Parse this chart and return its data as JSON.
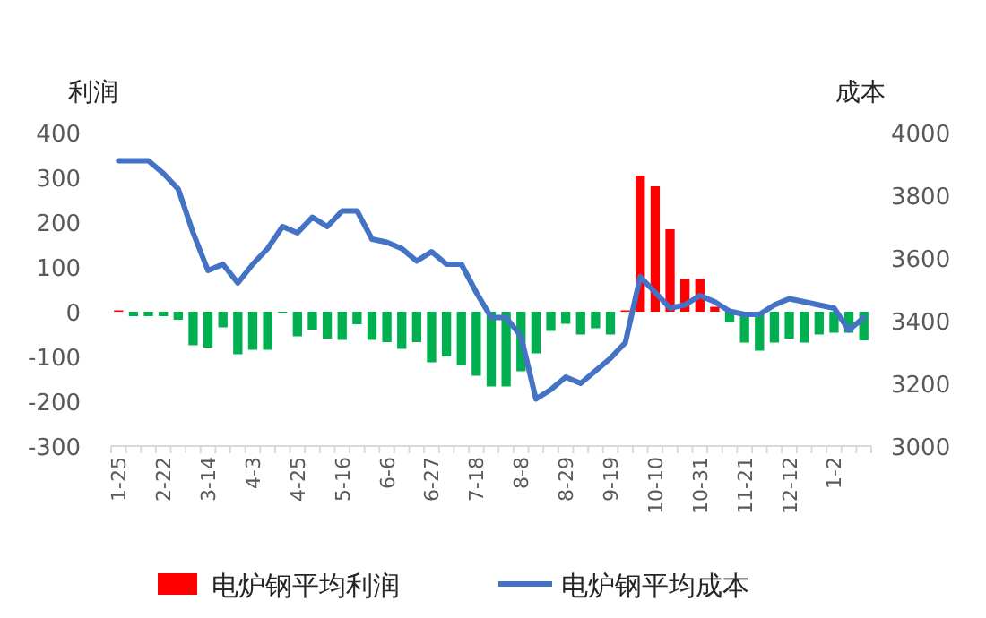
{
  "chart_data": {
    "type": "bar",
    "ylabel": "利润",
    "y2label": "成本",
    "categories": [
      "1-25",
      null,
      null,
      "2-22",
      null,
      null,
      "3-14",
      null,
      null,
      "4-3",
      null,
      null,
      "4-25",
      null,
      null,
      "5-16",
      null,
      null,
      "6-6",
      null,
      null,
      "6-27",
      null,
      null,
      "7-18",
      null,
      null,
      "8-8",
      null,
      null,
      "8-29",
      null,
      null,
      "9-19",
      null,
      null,
      "10-10",
      null,
      null,
      "10-31",
      null,
      null,
      "11-21",
      null,
      null,
      "12-12",
      null,
      null,
      "1-2",
      null,
      null
    ],
    "series": [
      {
        "name": "电炉钢平均利润",
        "color": "#ff0000",
        "colors": [
          "#ff0000",
          "#00b050",
          "#00b050",
          "#00b050",
          "#00b050",
          "#00b050",
          "#00b050",
          "#00b050",
          "#00b050",
          "#00b050",
          "#00b050",
          "#00b050",
          "#00b050",
          "#00b050",
          "#00b050",
          "#00b050",
          "#00b050",
          "#00b050",
          "#00b050",
          "#00b050",
          "#00b050",
          "#00b050",
          "#00b050",
          "#00b050",
          "#00b050",
          "#00b050",
          "#00b050",
          "#00b050",
          "#00b050",
          "#00b050",
          "#00b050",
          "#00b050",
          "#00b050",
          "#00b050",
          "#ff0000",
          "#ff0000",
          "#ff0000",
          "#ff0000",
          "#ff0000",
          "#ff0000",
          "#ff0000",
          "#00b050",
          "#00b050",
          "#00b050",
          "#00b050",
          "#00b050",
          "#00b050",
          "#00b050",
          "#00b050",
          "#00b050",
          "#00b050"
        ],
        "values": [
          3,
          -10,
          -10,
          -10,
          -18,
          -75,
          -80,
          -35,
          -95,
          -85,
          -85,
          -2,
          -55,
          -40,
          -60,
          -63,
          -28,
          -63,
          -68,
          -83,
          -68,
          -113,
          -100,
          -120,
          -143,
          -167,
          -167,
          -133,
          -93,
          -43,
          -27,
          -51,
          -37,
          -51,
          3,
          304,
          280,
          184,
          73,
          73,
          11,
          -24,
          -69,
          -87,
          -69,
          -60,
          -69,
          -51,
          -47,
          -47,
          -64
        ]
      },
      {
        "name": "电炉钢平均成本",
        "type": "line",
        "axis": "y2",
        "color": "#4472c4",
        "values": [
          3910,
          3910,
          3910,
          3870,
          3820,
          3680,
          3560,
          3580,
          3520,
          3580,
          3630,
          3700,
          3680,
          3730,
          3700,
          3750,
          3750,
          3660,
          3650,
          3630,
          3590,
          3620,
          3580,
          3580,
          3490,
          3410,
          3410,
          3350,
          3150,
          3180,
          3220,
          3200,
          3240,
          3280,
          3330,
          3540,
          3490,
          3440,
          3450,
          3480,
          3460,
          3430,
          3420,
          3420,
          3450,
          3470,
          3460,
          3450,
          3440,
          3370,
          3410
        ]
      }
    ],
    "ylim": [
      -300,
      400
    ],
    "yticks": [
      -300,
      -200,
      -100,
      0,
      100,
      200,
      300,
      400
    ],
    "y2lim": [
      3000,
      4000
    ],
    "y2ticks": [
      3000,
      3200,
      3400,
      3600,
      3800,
      4000
    ],
    "legend": "bottom"
  }
}
